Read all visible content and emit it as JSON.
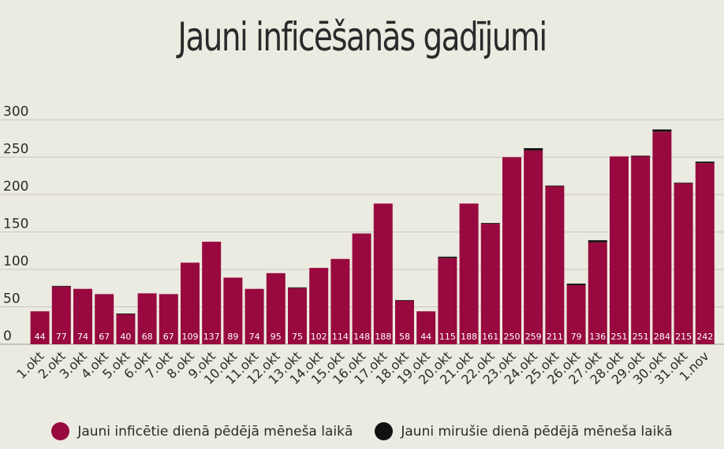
{
  "title": "Jauni inficēšanās gadījumi",
  "colors": {
    "cases": "#98093f",
    "deaths": "#111111",
    "grid": "#c8c8c0",
    "text": "#2a2a2a"
  },
  "legend": {
    "cases_label": "Jauni inficētie dienā pēdējā mēneša laikā",
    "deaths_label": "Jauni mirušie dienā pēdējā mēneša laikā"
  },
  "chart_data": {
    "type": "bar",
    "title": "Jauni inficēšanās gadījumi",
    "stacked": true,
    "categories": [
      "1.okt",
      "2.okt",
      "3.okt",
      "4.okt",
      "5.okt",
      "6.okt",
      "7.okt",
      "8.okt",
      "9.okt",
      "10.okt",
      "11.okt",
      "12.okt",
      "13.okt",
      "14.okt",
      "15.okt",
      "16.okt",
      "17.okt",
      "18.okt",
      "19.okt",
      "20.okt",
      "21.okt",
      "22.okt",
      "23.okt",
      "24.okt",
      "25.okt",
      "26.okt",
      "27.okt",
      "28.okt",
      "29.okt",
      "30.okt",
      "31.okt",
      "1.nov"
    ],
    "series": [
      {
        "name": "Jauni inficētie dienā pēdējā mēneša laikā",
        "values": [
          44,
          77,
          74,
          67,
          40,
          68,
          67,
          109,
          137,
          89,
          74,
          95,
          75,
          102,
          114,
          148,
          188,
          58,
          44,
          115,
          188,
          161,
          250,
          259,
          211,
          79,
          136,
          251,
          251,
          284,
          215,
          242
        ]
      },
      {
        "name": "Jauni mirušie dienā pēdējā mēneša laikā",
        "values": [
          0,
          1,
          0,
          0,
          1,
          0,
          0,
          0,
          0,
          0,
          0,
          0,
          1,
          0,
          0,
          0,
          0,
          1,
          0,
          2,
          0,
          1,
          0,
          3,
          1,
          2,
          3,
          0,
          1,
          3,
          1,
          2
        ]
      }
    ],
    "y_ticks": [
      0,
      50,
      100,
      150,
      200,
      250,
      300
    ],
    "ylim": [
      0,
      300
    ],
    "grid": true,
    "legend_position": "bottom"
  }
}
